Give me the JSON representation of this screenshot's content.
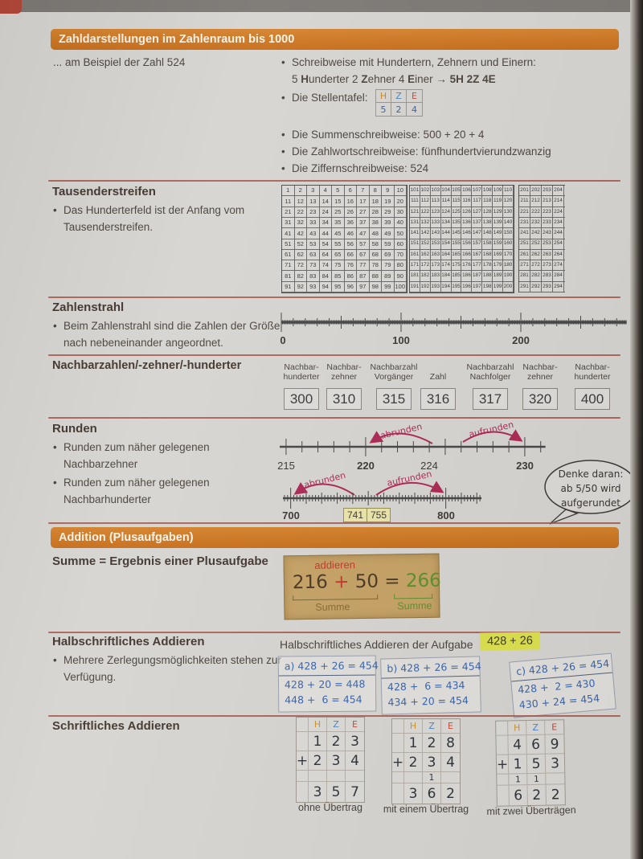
{
  "colors": {
    "band_orange": "#cd7420",
    "divider_red": "#a5564a",
    "arc_crimson": "#ad2a56",
    "hand_blue": "#3a66b0",
    "highlight_yellow": "#dce24e",
    "tan_note": "#c5a266",
    "green": "#5f8f2f",
    "red": "#c03a28",
    "paper": "#d7d5d1"
  },
  "sections": {
    "zahldarstellungen": {
      "title": "Zahldarstellungen im Zahlenraum bis 1000",
      "example": "... am Beispiel der Zahl 524",
      "schreibweise_line1": "Schreibweise mit Hundertern, Zehnern und Einern:",
      "schreibweise_line2_rich": [
        {
          "t": "5 ",
          "b": false
        },
        {
          "t": "H",
          "b": true
        },
        {
          "t": "underter 2 ",
          "b": false
        },
        {
          "t": "Z",
          "b": true
        },
        {
          "t": "ehner 4 ",
          "b": false
        },
        {
          "t": "E",
          "b": true
        },
        {
          "t": "iner → ",
          "b": false
        },
        {
          "t": "5H 2Z 4E",
          "b": true
        }
      ],
      "stellentafel_label": "Die Stellentafel:",
      "stellentafel": {
        "headers": [
          "H",
          "Z",
          "E"
        ],
        "values": [
          "5",
          "2",
          "4"
        ]
      },
      "summen": "Die Summenschreibweise: 500 + 20 + 4",
      "zahlwort": "Die Zahlwortschreibweise: fünfhundertvierundzwanzig",
      "ziffern": "Die Ziffernschreibweise: 524"
    },
    "tausenderstreifen": {
      "title": "Tausenderstreifen",
      "bullet": "Das Hunderterfeld ist der Anfang vom Tausenderstreifen.",
      "grids": [
        {
          "start": 1,
          "rows": 10,
          "cols": 10,
          "row_step": 10
        },
        {
          "start": 101,
          "rows": 10,
          "cols": 10,
          "row_step": 10
        },
        {
          "start": 201,
          "rows": 10,
          "cols": 5,
          "row_step": 10
        }
      ]
    },
    "zahlenstrahl": {
      "title": "Zahlenstrahl",
      "bullet": "Beim Zahlenstrahl sind die Zahlen der Größe nach nebeneinander angeordnet.",
      "labels": [
        "0",
        "100",
        "200"
      ]
    },
    "nachbarzahlen": {
      "title": "Nachbarzahlen/-zehner/-hunderter",
      "columns": [
        {
          "header1": "Nachbar-",
          "header2": "hunderter",
          "value": "300"
        },
        {
          "header1": "Nachbar-",
          "header2": "zehner",
          "value": "310"
        },
        {
          "header1": "Nachbarzahl",
          "header2": "Vorgänger",
          "value": "315"
        },
        {
          "header1": "",
          "header2": "Zahl",
          "value": "316"
        },
        {
          "header1": "Nachbarzahl",
          "header2": "Nachfolger",
          "value": "317"
        },
        {
          "header1": "Nachbar-",
          "header2": "zehner",
          "value": "320"
        },
        {
          "header1": "Nachbar-",
          "header2": "hunderter",
          "value": "400"
        }
      ]
    },
    "runden": {
      "title": "Runden",
      "bullet1": "Runden zum näher gelegenen Nachbarzehner",
      "bullet2": "Runden zum näher gelegenen Nachbarhunderter",
      "arc_abrunden": "abrunden",
      "arc_aufrunden": "aufrunden",
      "line1_labels": {
        "l215": "215",
        "l220": "220",
        "l224": "224",
        "l230": "230"
      },
      "line2_labels": {
        "l700": "700",
        "l800": "800",
        "box741": "741",
        "box755": "755"
      },
      "bubble": [
        "Denke daran:",
        "ab 5/50 wird",
        "aufgerundet"
      ]
    },
    "addition": {
      "title": "Addition (Plusaufgaben)",
      "summe_heading": "Summe = Ergebnis einer Plusaufgabe",
      "box": {
        "label": "addieren",
        "a": "216",
        "plus": "+",
        "b": "50",
        "eq": "=",
        "result": "266",
        "summe_left": "Summe",
        "summe_right": "Summe"
      }
    },
    "halbschriftlich": {
      "title": "Halbschriftliches Addieren",
      "bullet": "Mehrere Zerlegungsmöglichkeiten stehen zur Verfügung.",
      "right_text": "Halbschriftliches Addieren der Aufgabe",
      "task": "428 + 26",
      "methods": [
        {
          "label": "a)",
          "head": "428 + 26 = 454",
          "lines": [
            "428 + 20 = 448",
            "448 +  6 = 454"
          ]
        },
        {
          "label": "b)",
          "head": "428 + 26 = 454",
          "lines": [
            "428 +  6 = 434",
            "434 + 20 = 454"
          ]
        },
        {
          "label": "c)",
          "head": "428 + 26 = 454",
          "lines": [
            "428 +  2 = 430",
            "430 + 24 = 454"
          ]
        }
      ]
    },
    "schriftlich": {
      "title": "Schriftliches Addieren",
      "place_headers": [
        "H",
        "Z",
        "E"
      ],
      "plus_sign": "+",
      "tables": [
        {
          "row1": [
            "1",
            "2",
            "3"
          ],
          "row2": [
            "2",
            "3",
            "4"
          ],
          "carry": [
            "",
            "",
            ""
          ],
          "result": [
            "3",
            "5",
            "7"
          ],
          "caption": "ohne Übertrag"
        },
        {
          "row1": [
            "1",
            "2",
            "8"
          ],
          "row2": [
            "2",
            "3",
            "4"
          ],
          "carry": [
            "",
            "1",
            ""
          ],
          "result": [
            "3",
            "6",
            "2"
          ],
          "caption": "mit einem Übertrag"
        },
        {
          "row1": [
            "4",
            "6",
            "9"
          ],
          "row2": [
            "1",
            "5",
            "3"
          ],
          "carry": [
            "1",
            "1",
            ""
          ],
          "result": [
            "6",
            "2",
            "2"
          ],
          "caption": "mit zwei Überträgen"
        }
      ]
    }
  }
}
